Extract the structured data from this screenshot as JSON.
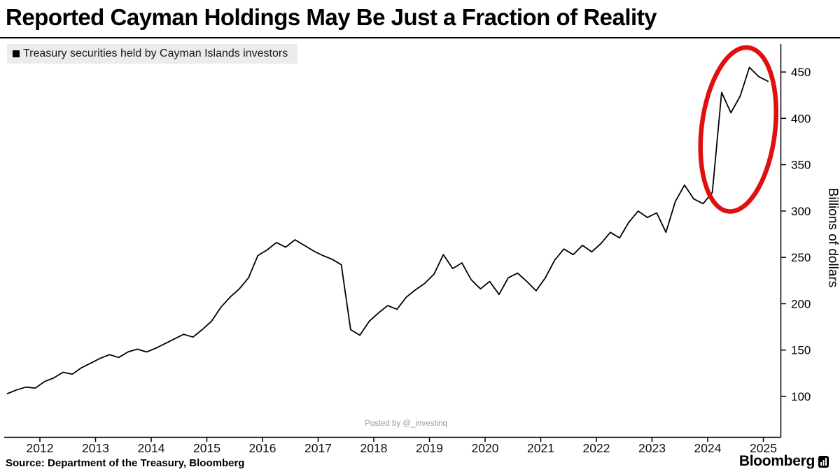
{
  "page": {
    "title": "Reported Cayman Holdings May Be Just a Fraction of Reality",
    "legend_label": "Treasury securities held by Cayman Islands investors",
    "watermark": "Posted by @_investinq",
    "source_text": "Source: Department of the Treasury, Bloomberg",
    "brand": "Bloomberg"
  },
  "colors": {
    "line": "#000000",
    "annotation_red": "#e01010",
    "legend_bg": "#ececec",
    "watermark_gray": "#999999"
  },
  "chart_data": {
    "type": "line",
    "title": "Reported Cayman Holdings May Be Just a Fraction of Reality",
    "xlabel": "",
    "ylabel": "Billions of dollars",
    "unit": "billions of US dollars",
    "grid": false,
    "legend_position": "top-left",
    "xlim": [
      2011.4,
      2025.4
    ],
    "ylim": [
      85,
      480
    ],
    "yticks": [
      100,
      150,
      200,
      250,
      300,
      350,
      400,
      450
    ],
    "xticks": [
      2012,
      2013,
      2014,
      2015,
      2016,
      2017,
      2018,
      2019,
      2020,
      2021,
      2022,
      2023,
      2024,
      2025
    ],
    "x_start": 2011.4167,
    "x_step": 0.166667,
    "series": [
      {
        "name": "Treasury securities held by Cayman Islands investors",
        "values": [
          103,
          107,
          110,
          109,
          116,
          120,
          126,
          124,
          131,
          136,
          141,
          145,
          142,
          148,
          151,
          148,
          152,
          157,
          162,
          167,
          164,
          172,
          181,
          196,
          207,
          216,
          228,
          252,
          258,
          266,
          261,
          269,
          263,
          257,
          252,
          248,
          242,
          172,
          166,
          181,
          190,
          198,
          194,
          207,
          215,
          222,
          232,
          253,
          238,
          244,
          226,
          216,
          224,
          210,
          228,
          233,
          224,
          214,
          228,
          247,
          259,
          253,
          263,
          256,
          265,
          277,
          271,
          288,
          300,
          293,
          298,
          277,
          310,
          328,
          313,
          308,
          320,
          428,
          406,
          424,
          455,
          445,
          440
        ]
      }
    ],
    "annotation": {
      "shape": "ellipse",
      "description": "hand-drawn red circle highlighting the 2024-2025 surge in reported holdings",
      "cx_year": 2024.55,
      "cy_value": 388,
      "rx_years": 0.66,
      "ry_value": 89,
      "rotate_deg": 7,
      "color": "#e01010",
      "stroke_width": 6.5
    }
  }
}
